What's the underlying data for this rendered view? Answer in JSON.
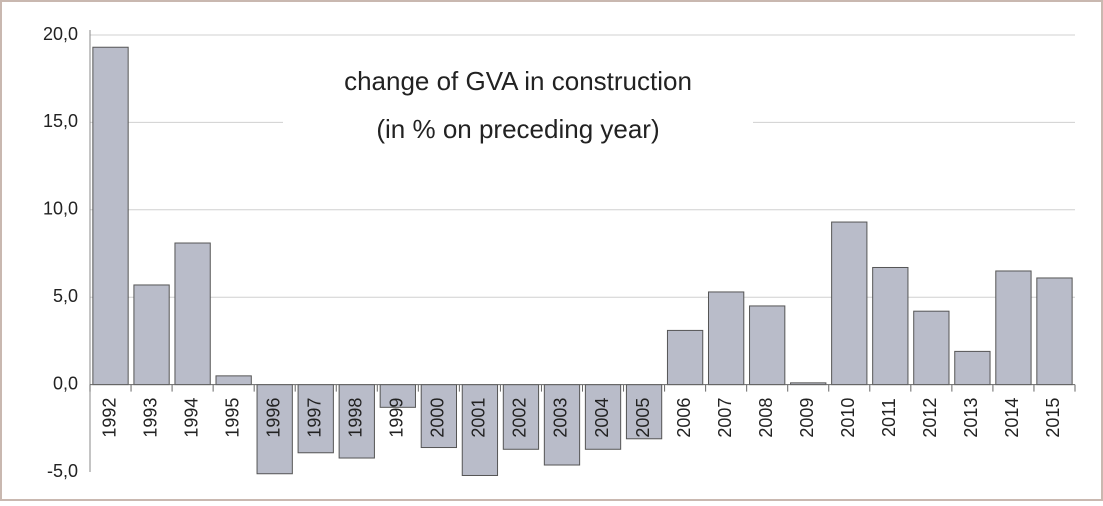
{
  "chart_data": {
    "type": "bar",
    "title": "change of GVA in construction",
    "subtitle": "(in % on preceding year)",
    "categories": [
      "1992",
      "1993",
      "1994",
      "1995",
      "1996",
      "1997",
      "1998",
      "1999",
      "2000",
      "2001",
      "2002",
      "2003",
      "2004",
      "2005",
      "2006",
      "2007",
      "2008",
      "2009",
      "2010",
      "2011",
      "2012",
      "2013",
      "2014",
      "2015"
    ],
    "values": [
      19.3,
      5.7,
      8.1,
      0.5,
      -5.1,
      -3.9,
      -4.2,
      -1.3,
      -3.6,
      -5.2,
      -3.7,
      -4.6,
      -3.7,
      -3.1,
      3.1,
      5.3,
      4.5,
      0.1,
      9.3,
      6.7,
      4.2,
      1.9,
      6.5,
      6.1
    ],
    "color": "#b9bcc9",
    "ylim": [
      -5,
      20
    ],
    "yticks": [
      {
        "value": -5,
        "label": "-5,0"
      },
      {
        "value": 0,
        "label": "0,0"
      },
      {
        "value": 5,
        "label": "5,0"
      },
      {
        "value": 10,
        "label": "10,0"
      },
      {
        "value": 15,
        "label": "15,0"
      },
      {
        "value": 20,
        "label": "20,0"
      }
    ],
    "grid": true
  }
}
